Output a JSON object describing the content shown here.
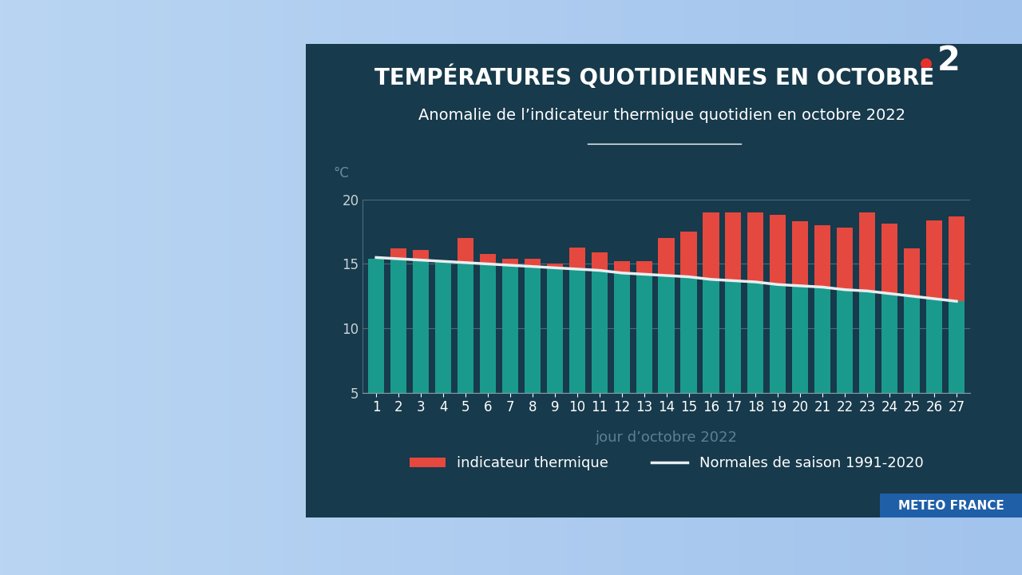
{
  "chart_data": {
    "type": "bar",
    "title": "TEMPÉRATURES QUOTIDIENNES EN OCTOBRE",
    "subtitle": "Anomalie de l’indicateur thermique quotidien en octobre 2022",
    "x_label": "jour d’octobre 2022",
    "y_label": "°C",
    "source": "METEO FRANCE",
    "channel_logo": "2",
    "categories": [
      "1",
      "2",
      "3",
      "4",
      "5",
      "6",
      "7",
      "8",
      "9",
      "10",
      "11",
      "12",
      "13",
      "14",
      "15",
      "16",
      "17",
      "18",
      "19",
      "20",
      "21",
      "22",
      "23",
      "24",
      "25",
      "26",
      "27"
    ],
    "series": [
      {
        "name": "indicateur thermique",
        "type": "bar",
        "color": "#e5483f",
        "values": [
          15.4,
          16.2,
          16.1,
          15.3,
          17.0,
          15.8,
          15.4,
          15.4,
          15.0,
          16.3,
          15.9,
          15.2,
          15.2,
          17.0,
          17.5,
          19.0,
          19.0,
          19.0,
          18.8,
          18.3,
          18.0,
          17.8,
          19.0,
          18.1,
          16.2,
          18.4,
          18.7
        ]
      },
      {
        "name": "Normales de saison 1991-2020",
        "type": "line",
        "color": "#e8eef0",
        "values": [
          15.5,
          15.4,
          15.3,
          15.2,
          15.1,
          15.0,
          14.9,
          14.8,
          14.7,
          14.6,
          14.5,
          14.3,
          14.2,
          14.1,
          14.0,
          13.8,
          13.7,
          13.6,
          13.4,
          13.3,
          13.2,
          13.0,
          12.9,
          12.7,
          12.5,
          12.3,
          12.1
        ]
      }
    ],
    "ylim": [
      5,
      20
    ],
    "yticks": [
      5,
      10,
      15,
      20
    ],
    "grid": true,
    "legend": "lower center"
  }
}
